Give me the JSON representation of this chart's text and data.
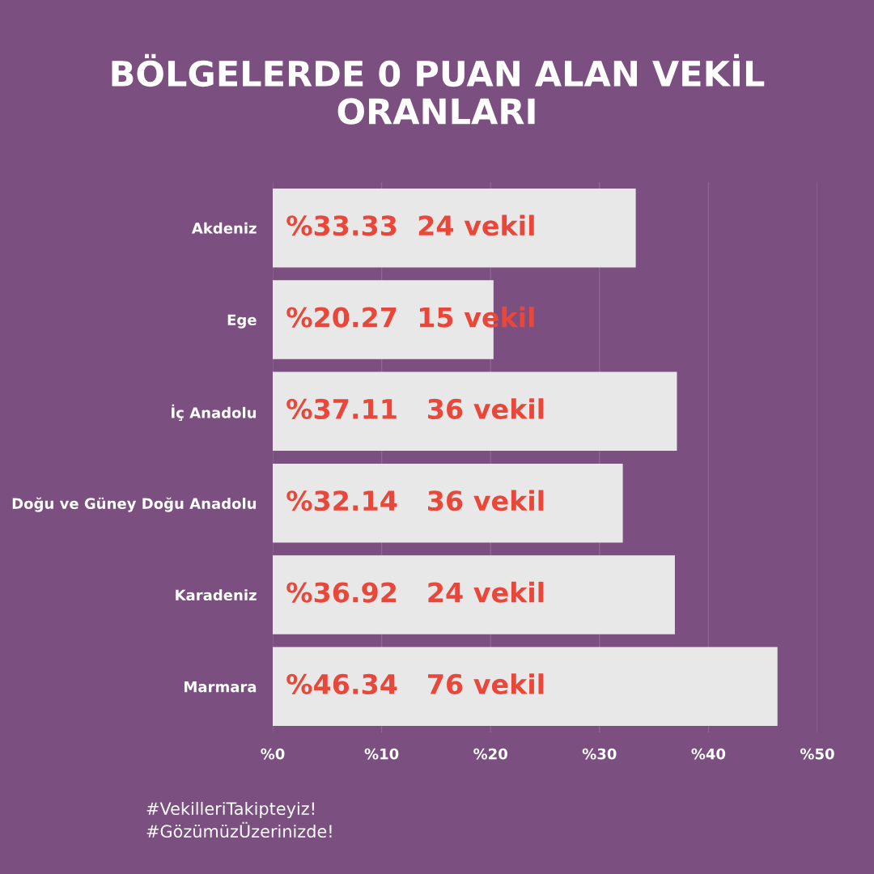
{
  "chart_data": {
    "type": "bar",
    "orientation": "horizontal",
    "title": "BÖLGELERDE 0 PUAN ALAN VEKİL\nORANLARI",
    "categories": [
      "Akdeniz",
      "Ege",
      "İç Anadolu",
      "Doğu ve Güney Doğu Anadolu",
      "Karadeniz",
      "Marmara"
    ],
    "values": [
      33.33,
      20.27,
      37.11,
      32.14,
      36.92,
      46.34
    ],
    "value_labels": [
      "%33.33  24 vekil",
      "%20.27  15 vekil",
      "%37.11   36 vekil",
      "%32.14   36 vekil",
      "%36.92   24 vekil",
      "%46.34   76 vekil"
    ],
    "color": "#e8e8e8",
    "xlim": [
      0,
      50
    ],
    "xticks": [
      {
        "value": 0,
        "label": "%0"
      },
      {
        "value": 10,
        "label": "%10"
      },
      {
        "value": 20,
        "label": "%20"
      },
      {
        "value": 30,
        "label": "%30"
      },
      {
        "value": 40,
        "label": "%40"
      },
      {
        "value": 50,
        "label": "%50"
      }
    ],
    "grid": "x",
    "annotations": [
      "#VekilleriTakipteyiz!\n#GözümüzÜzerinizde!"
    ]
  }
}
